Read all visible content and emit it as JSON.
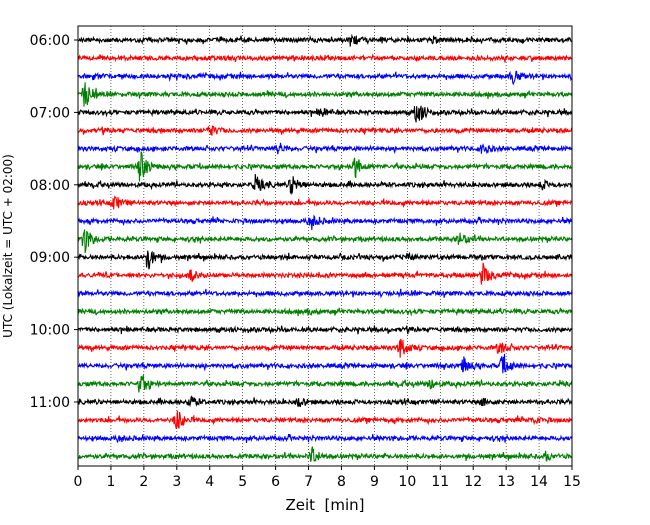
{
  "chart_data": {
    "type": "line",
    "title": "",
    "xlabel": "Zeit  [min]",
    "ylabel": "UTC (Lokalzeit = UTC + 02:00)",
    "xlim": [
      0,
      15
    ],
    "x_ticks": [
      0,
      1,
      2,
      3,
      4,
      5,
      6,
      7,
      8,
      9,
      10,
      11,
      12,
      13,
      14,
      15
    ],
    "y_tick_labels": [
      "06:00",
      "07:00",
      "08:00",
      "09:00",
      "10:00",
      "11:00"
    ],
    "grid": "vertical dotted at each minute",
    "line_colors": [
      "#000000",
      "#ff0000",
      "#0000ff",
      "#008000"
    ],
    "traces": [
      {
        "start": "06:00",
        "events": [
          {
            "t": 8.3,
            "amp": 0.45
          },
          {
            "t": 10.8,
            "amp": 0.2
          }
        ]
      },
      {
        "start": "06:15",
        "events": []
      },
      {
        "start": "06:30",
        "events": [
          {
            "t": 13.2,
            "amp": 0.5
          },
          {
            "t": 0.5,
            "amp": 0.15
          }
        ]
      },
      {
        "start": "06:45",
        "events": [
          {
            "t": 0.2,
            "amp": 1.1
          }
        ]
      },
      {
        "start": "07:00",
        "events": [
          {
            "t": 10.3,
            "amp": 1.0
          },
          {
            "t": 7.4,
            "amp": 0.3
          }
        ]
      },
      {
        "start": "07:15",
        "events": [
          {
            "t": 4.0,
            "amp": 0.4
          }
        ]
      },
      {
        "start": "07:30",
        "events": [
          {
            "t": 6.1,
            "amp": 0.4
          },
          {
            "t": 12.3,
            "amp": 0.4
          }
        ]
      },
      {
        "start": "07:45",
        "events": [
          {
            "t": 1.9,
            "amp": 1.1
          },
          {
            "t": 8.4,
            "amp": 0.8
          }
        ]
      },
      {
        "start": "08:00",
        "events": [
          {
            "t": 5.4,
            "amp": 0.6
          },
          {
            "t": 6.5,
            "amp": 0.8
          },
          {
            "t": 14.1,
            "amp": 0.25
          }
        ]
      },
      {
        "start": "08:15",
        "events": [
          {
            "t": 1.1,
            "amp": 0.55
          }
        ]
      },
      {
        "start": "08:30",
        "events": [
          {
            "t": 7.1,
            "amp": 0.6
          }
        ]
      },
      {
        "start": "08:45",
        "events": [
          {
            "t": 0.2,
            "amp": 1.0
          },
          {
            "t": 11.6,
            "amp": 0.5
          }
        ]
      },
      {
        "start": "09:00",
        "events": [
          {
            "t": 2.1,
            "amp": 1.0
          },
          {
            "t": 10.0,
            "amp": 0.2
          }
        ]
      },
      {
        "start": "09:15",
        "events": [
          {
            "t": 3.4,
            "amp": 0.45
          },
          {
            "t": 12.3,
            "amp": 0.75
          }
        ]
      },
      {
        "start": "09:30",
        "events": []
      },
      {
        "start": "09:45",
        "events": [
          {
            "t": 7.0,
            "amp": 0.15
          }
        ]
      },
      {
        "start": "10:00",
        "events": []
      },
      {
        "start": "10:15",
        "events": [
          {
            "t": 9.8,
            "amp": 0.75
          },
          {
            "t": 12.8,
            "amp": 0.55
          }
        ]
      },
      {
        "start": "10:30",
        "events": [
          {
            "t": 11.7,
            "amp": 0.6
          },
          {
            "t": 12.9,
            "amp": 0.8
          }
        ]
      },
      {
        "start": "10:45",
        "events": [
          {
            "t": 1.9,
            "amp": 0.8
          },
          {
            "t": 10.7,
            "amp": 0.4
          }
        ]
      },
      {
        "start": "11:00",
        "events": [
          {
            "t": 3.4,
            "amp": 0.45
          },
          {
            "t": 6.7,
            "amp": 0.35
          },
          {
            "t": 12.3,
            "amp": 0.3
          }
        ]
      },
      {
        "start": "11:15",
        "events": [
          {
            "t": 3.0,
            "amp": 0.8
          },
          {
            "t": 13.8,
            "amp": 0.25
          }
        ]
      },
      {
        "start": "11:30",
        "events": [
          {
            "t": 1.3,
            "amp": 0.2
          }
        ]
      },
      {
        "start": "11:45",
        "events": [
          {
            "t": 7.1,
            "amp": 0.65
          },
          {
            "t": 14.2,
            "amp": 0.25
          }
        ]
      }
    ]
  }
}
